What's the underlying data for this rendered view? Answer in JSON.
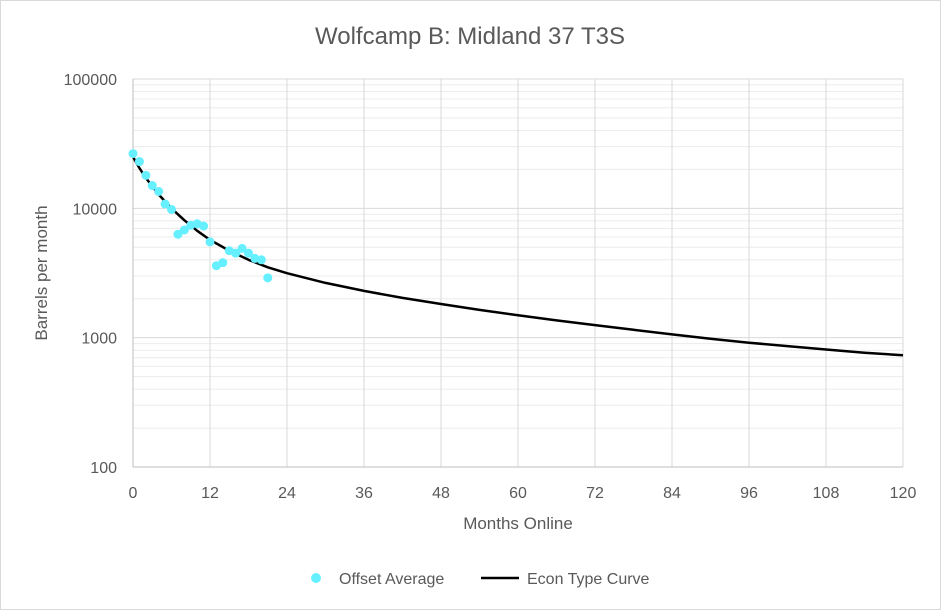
{
  "chart_data": {
    "type": "scatter",
    "title": "Wolfcamp B: Midland 37 T3S",
    "xlabel": "Months Online",
    "ylabel": "Barrels per month",
    "xlim": [
      0,
      120
    ],
    "ylim": [
      100,
      100000
    ],
    "y_scale": "log",
    "x_ticks": [
      0,
      12,
      24,
      36,
      48,
      60,
      72,
      84,
      96,
      108,
      120
    ],
    "x_tick_labels": [
      "0",
      "12",
      "24",
      "36",
      "48",
      "60",
      "72",
      "84",
      "96",
      "108",
      "120"
    ],
    "y_ticks": [
      100,
      1000,
      10000,
      100000
    ],
    "y_tick_labels": [
      "100",
      "1000",
      "10000",
      "100000"
    ],
    "grid": true,
    "legend_position": "bottom",
    "series": [
      {
        "name": "Offset Average",
        "type": "scatter",
        "color": "#66f0ff",
        "x": [
          0,
          1,
          2,
          3,
          4,
          5,
          6,
          7,
          8,
          9,
          10,
          11,
          12,
          13,
          14,
          15,
          16,
          17,
          18,
          19,
          20,
          21
        ],
        "y": [
          26500,
          23000,
          18000,
          15000,
          13500,
          10800,
          9800,
          6300,
          6800,
          7400,
          7600,
          7300,
          5500,
          3600,
          3800,
          4700,
          4500,
          4900,
          4500,
          4100,
          4000,
          2900
        ]
      },
      {
        "name": "Econ Type Curve",
        "type": "line",
        "color": "#000000",
        "x": [
          0,
          1,
          2,
          3,
          4,
          5,
          6,
          7,
          8,
          9,
          10,
          12,
          15,
          18,
          21,
          24,
          30,
          36,
          42,
          48,
          54,
          60,
          66,
          72,
          78,
          84,
          90,
          96,
          102,
          108,
          114,
          120
        ],
        "y": [
          25000,
          20500,
          17200,
          14800,
          12800,
          11300,
          10000,
          9000,
          8100,
          7350,
          6700,
          5700,
          4700,
          4000,
          3500,
          3150,
          2650,
          2300,
          2030,
          1820,
          1640,
          1490,
          1360,
          1250,
          1150,
          1060,
          980,
          915,
          860,
          810,
          765,
          730
        ]
      }
    ]
  }
}
